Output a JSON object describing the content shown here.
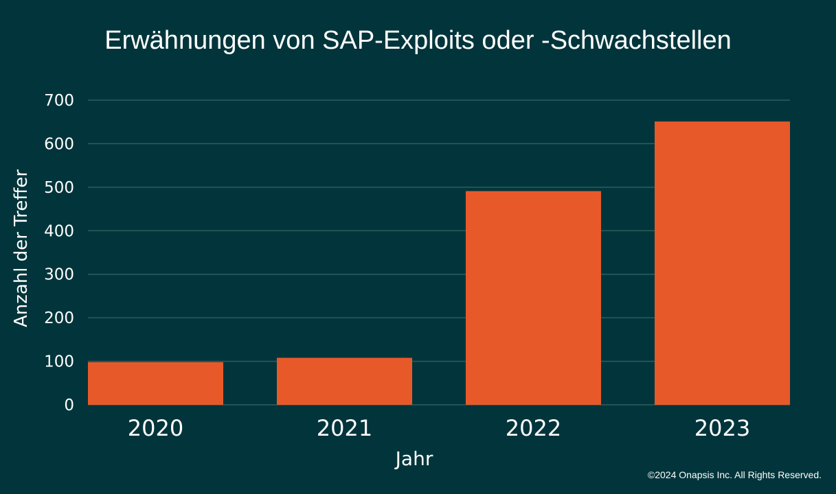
{
  "chart_data": {
    "type": "bar",
    "title": "Erwähnungen von SAP-Exploits oder -Schwachstellen",
    "xlabel": "Jahr",
    "ylabel": "Anzahl der Treffer",
    "categories": [
      "2020",
      "2021",
      "2022",
      "2023"
    ],
    "values": [
      98,
      108,
      491,
      651
    ],
    "ylim": [
      0,
      700
    ],
    "yticks": [
      "0",
      "100",
      "200",
      "300",
      "400",
      "500",
      "600",
      "700"
    ],
    "grid": true,
    "legend": "none"
  },
  "colors": {
    "background": "#02353b",
    "bar": "#e8592a",
    "gridline": "#2c5e5f",
    "text": "#ffffff"
  },
  "footer": {
    "copyright": "©2024 Onapsis Inc. All Rights Reserved."
  }
}
